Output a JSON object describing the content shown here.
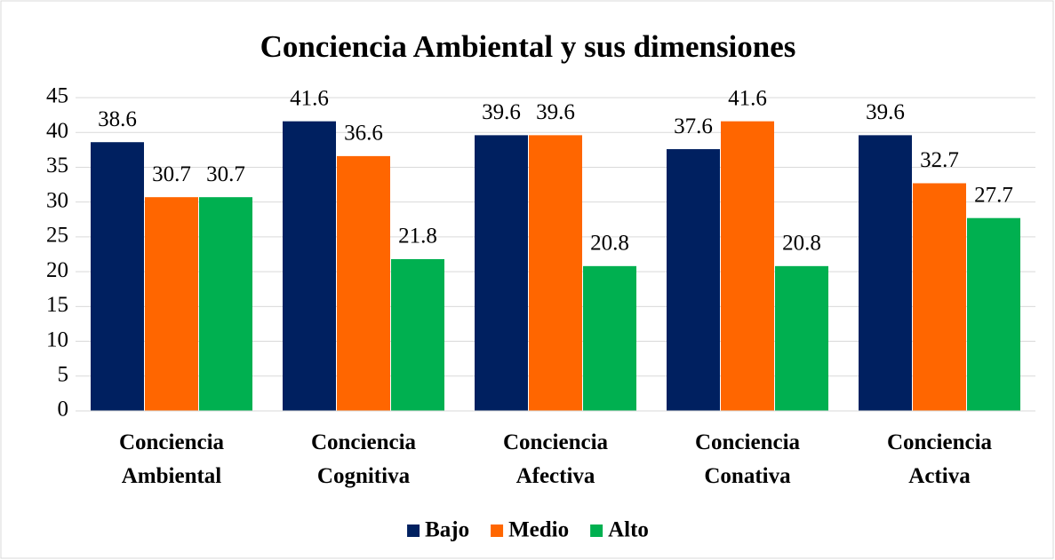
{
  "chart_data": {
    "type": "bar",
    "title": "Conciencia Ambiental y sus dimensiones",
    "categories": [
      "Conciencia Ambiental",
      "Conciencia Cognitiva",
      "Conciencia Afectiva",
      "Conciencia Conativa",
      "Conciencia Activa"
    ],
    "series": [
      {
        "name": "Bajo",
        "color": "#002060",
        "values": [
          38.6,
          41.6,
          39.6,
          37.6,
          39.6
        ]
      },
      {
        "name": "Medio",
        "color": "#ff6600",
        "values": [
          30.7,
          36.6,
          39.6,
          41.6,
          32.7
        ]
      },
      {
        "name": "Alto",
        "color": "#00b050",
        "values": [
          30.7,
          21.8,
          20.8,
          20.8,
          27.7
        ]
      }
    ],
    "ylim": [
      0,
      45
    ],
    "yticks": [
      0,
      5,
      10,
      15,
      20,
      25,
      30,
      35,
      40,
      45
    ],
    "grid": true,
    "legend": "bottom"
  }
}
